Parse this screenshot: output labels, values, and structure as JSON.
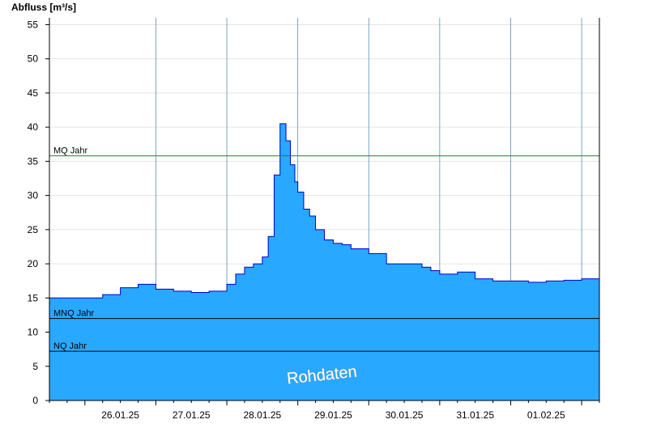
{
  "chart_data": {
    "type": "area",
    "ylabel": "Abfluss [m³/s]",
    "ylim": [
      0,
      56
    ],
    "yticks": [
      0,
      5,
      10,
      15,
      20,
      25,
      30,
      35,
      40,
      45,
      50,
      55
    ],
    "xrange_days": [
      "25.01.25 12:00",
      "02.02.25 06:00"
    ],
    "x_tick_labels": [
      "26.01.25",
      "27.01.25",
      "28.01.25",
      "29.01.25",
      "30.01.25",
      "31.01.25",
      "01.02.25"
    ],
    "grid": true,
    "colors": {
      "fill": "#29a8ff",
      "line": "#0000cc",
      "mq": "#2e7d32",
      "ref": "#000000"
    },
    "reference_lines": [
      {
        "name": "MQ Jahr",
        "value": 35.8
      },
      {
        "name": "MNQ Jahr",
        "value": 12.0
      },
      {
        "name": "NQ Jahr",
        "value": 7.2
      }
    ],
    "series": [
      {
        "x": [
          "25.01.25 12:00",
          "25.01.25 18:00",
          "26.01.25 00:00",
          "26.01.25 06:00",
          "26.01.25 12:00",
          "26.01.25 18:00",
          "27.01.25 00:00",
          "27.01.25 06:00",
          "27.01.25 12:00",
          "27.01.25 18:00",
          "28.01.25 00:00",
          "28.01.25 03:00",
          "28.01.25 06:00",
          "28.01.25 09:00",
          "28.01.25 12:00",
          "28.01.25 14:00",
          "28.01.25 16:00",
          "28.01.25 18:00",
          "28.01.25 20:00",
          "28.01.25 21:30",
          "28.01.25 23:00",
          "29.01.25 00:00",
          "29.01.25 02:00",
          "29.01.25 04:00",
          "29.01.25 06:00",
          "29.01.25 09:00",
          "29.01.25 12:00",
          "29.01.25 15:00",
          "29.01.25 18:00",
          "30.01.25 00:00",
          "30.01.25 06:00",
          "30.01.25 12:00",
          "30.01.25 18:00",
          "30.01.25 21:00",
          "31.01.25 00:00",
          "31.01.25 03:00",
          "31.01.25 06:00",
          "31.01.25 12:00",
          "31.01.25 18:00",
          "01.02.25 00:00",
          "01.02.25 06:00",
          "01.02.25 12:00",
          "01.02.25 18:00",
          "02.02.25 00:00",
          "02.02.25 06:00"
        ],
        "values": [
          15.0,
          15.0,
          15.0,
          15.5,
          16.5,
          17.0,
          16.3,
          16.0,
          15.8,
          16.0,
          17.0,
          18.5,
          19.5,
          20.0,
          21.0,
          24.0,
          33.0,
          40.5,
          38.0,
          34.5,
          32.0,
          30.5,
          28.0,
          27.0,
          25.0,
          23.5,
          23.0,
          22.8,
          22.2,
          21.5,
          20.0,
          20.0,
          19.5,
          19.0,
          18.5,
          18.5,
          18.8,
          17.8,
          17.5,
          17.5,
          17.3,
          17.5,
          17.6,
          17.8,
          17.8
        ]
      }
    ],
    "watermark": "Rohdaten"
  }
}
